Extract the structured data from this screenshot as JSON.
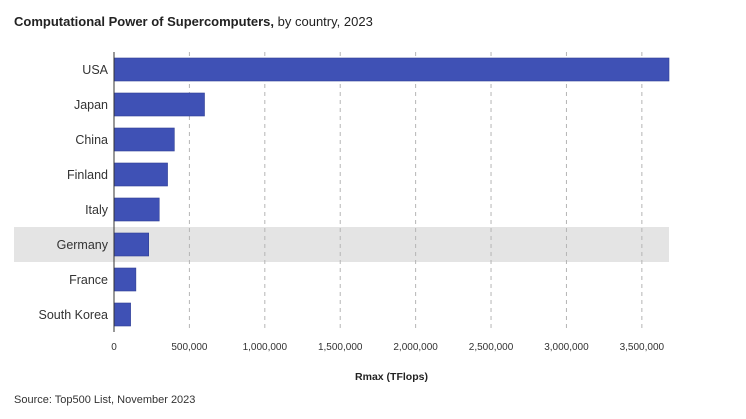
{
  "title_bold": "Computational Power of Supercomputers,",
  "title_rest": " by country, 2023",
  "source": "Source: Top500 List, November 2023",
  "chart_data": {
    "type": "bar",
    "orientation": "horizontal",
    "categories": [
      "USA",
      "Japan",
      "China",
      "Finland",
      "Italy",
      "Germany",
      "France",
      "South Korea"
    ],
    "values": [
      3680000,
      600000,
      400000,
      355000,
      300000,
      230000,
      145000,
      110000
    ],
    "highlighted_category": "Germany",
    "xlabel": "Rmax (TFlops)",
    "ylabel": "",
    "xlim": [
      0,
      3680000
    ],
    "xticks": [
      0,
      500000,
      1000000,
      1500000,
      2000000,
      2500000,
      3000000,
      3500000
    ],
    "xtick_labels": [
      "0",
      "500,000",
      "1,000,000",
      "1,500,000",
      "2,000,000",
      "2,500,000",
      "3,000,000",
      "3,500,000"
    ],
    "grid": "vertical dashed",
    "legend": "none",
    "colors": {
      "bar": "#3f51b5",
      "bar_edge": "#2f3e94",
      "highlight_band": "#e4e4e4",
      "grid": "#b5b5b5",
      "axis": "#333333"
    }
  }
}
